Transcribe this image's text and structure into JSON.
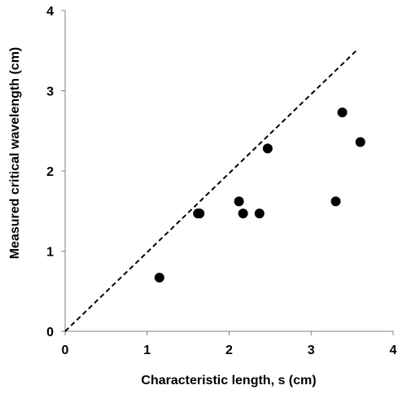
{
  "chart_data": {
    "type": "scatter",
    "title": "",
    "xlabel": "Characteristic length, s (cm)",
    "ylabel": "Measured critical wavelength (cm)",
    "xlim": [
      0,
      4
    ],
    "ylim": [
      0,
      4
    ],
    "x_ticks": [
      "0",
      "1",
      "2",
      "3",
      "4"
    ],
    "y_ticks": [
      "0",
      "1",
      "2",
      "3",
      "4"
    ],
    "grid": false,
    "legend": "none",
    "marker_color": "#000000",
    "series": [
      {
        "points": [
          {
            "x": 1.15,
            "y": 0.67
          },
          {
            "x": 1.62,
            "y": 1.47
          },
          {
            "x": 1.64,
            "y": 1.47
          },
          {
            "x": 2.12,
            "y": 1.62
          },
          {
            "x": 2.17,
            "y": 1.47
          },
          {
            "x": 2.37,
            "y": 1.47
          },
          {
            "x": 2.47,
            "y": 2.28
          },
          {
            "x": 3.3,
            "y": 1.62
          },
          {
            "x": 3.38,
            "y": 2.73
          },
          {
            "x": 3.6,
            "y": 2.36
          }
        ]
      }
    ],
    "reference_line": {
      "style": "dashed",
      "x": [
        0,
        3.55
      ],
      "y": [
        0,
        3.5
      ]
    }
  }
}
